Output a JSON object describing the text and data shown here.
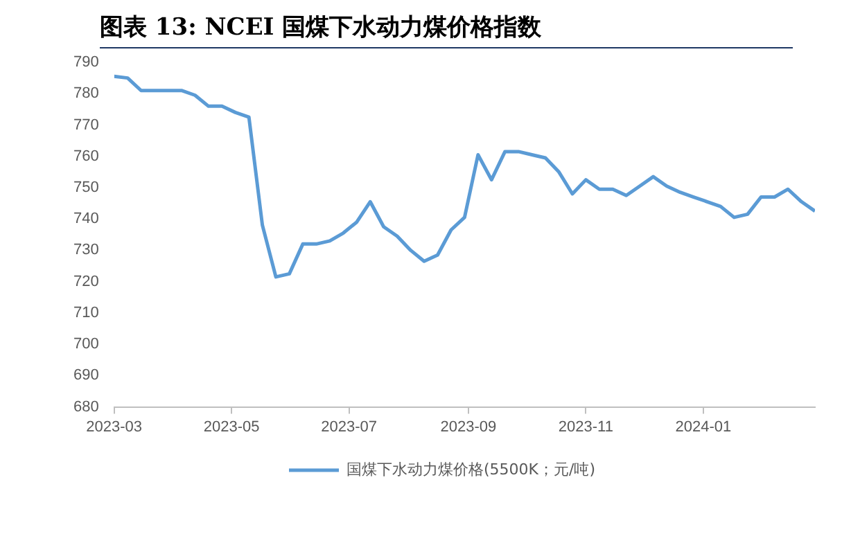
{
  "chart_data": {
    "type": "line",
    "title": "图表 13:  NCEI 国煤下水动力煤价格指数",
    "x": [
      "2023-03-01",
      "2023-03-08",
      "2023-03-15",
      "2023-03-22",
      "2023-03-29",
      "2023-04-05",
      "2023-04-12",
      "2023-04-19",
      "2023-04-26",
      "2023-05-03",
      "2023-05-10",
      "2023-05-17",
      "2023-05-24",
      "2023-05-31",
      "2023-06-07",
      "2023-06-14",
      "2023-06-21",
      "2023-06-28",
      "2023-07-05",
      "2023-07-12",
      "2023-07-19",
      "2023-07-26",
      "2023-08-02",
      "2023-08-09",
      "2023-08-16",
      "2023-08-23",
      "2023-08-30",
      "2023-09-06",
      "2023-09-13",
      "2023-09-20",
      "2023-09-27",
      "2023-10-04",
      "2023-10-11",
      "2023-10-18",
      "2023-10-25",
      "2023-11-01",
      "2023-11-08",
      "2023-11-15",
      "2023-11-22",
      "2023-11-29",
      "2023-12-06",
      "2023-12-13",
      "2023-12-20",
      "2023-12-27",
      "2024-01-03",
      "2024-01-10",
      "2024-01-17",
      "2024-01-24",
      "2024-01-31",
      "2024-02-07",
      "2024-02-14",
      "2024-02-21",
      "2024-02-28"
    ],
    "series": [
      {
        "name": "国煤下水动力煤价格(5500K；元/吨)",
        "color": "#5b9bd5",
        "values": [
          785.5,
          785,
          781,
          781,
          781,
          781,
          779.5,
          776,
          776,
          774,
          772.5,
          738,
          721.5,
          722.5,
          732,
          732,
          733,
          735.5,
          739,
          745.5,
          737.5,
          734.5,
          730,
          726.5,
          728.5,
          736.5,
          740.5,
          760.5,
          752.5,
          761.5,
          761.5,
          760.5,
          759.5,
          755,
          748,
          752.5,
          749.5,
          749.5,
          747.5,
          750.5,
          753.5,
          750.5,
          748.5,
          747,
          745.5,
          744,
          740.5,
          741.5,
          747,
          747,
          749.5,
          745.5,
          742.5
        ]
      }
    ],
    "xlim": [
      "2023-03-01",
      "2024-02-28"
    ],
    "xticks": [
      "2023-03",
      "2023-05",
      "2023-07",
      "2023-09",
      "2023-11",
      "2024-01"
    ],
    "ylim": [
      680,
      790
    ],
    "yticks": [
      680,
      690,
      700,
      710,
      720,
      730,
      740,
      750,
      760,
      770,
      780,
      790
    ],
    "grid": false,
    "legend": "bottom",
    "marker": "none",
    "line_style": "solid"
  }
}
